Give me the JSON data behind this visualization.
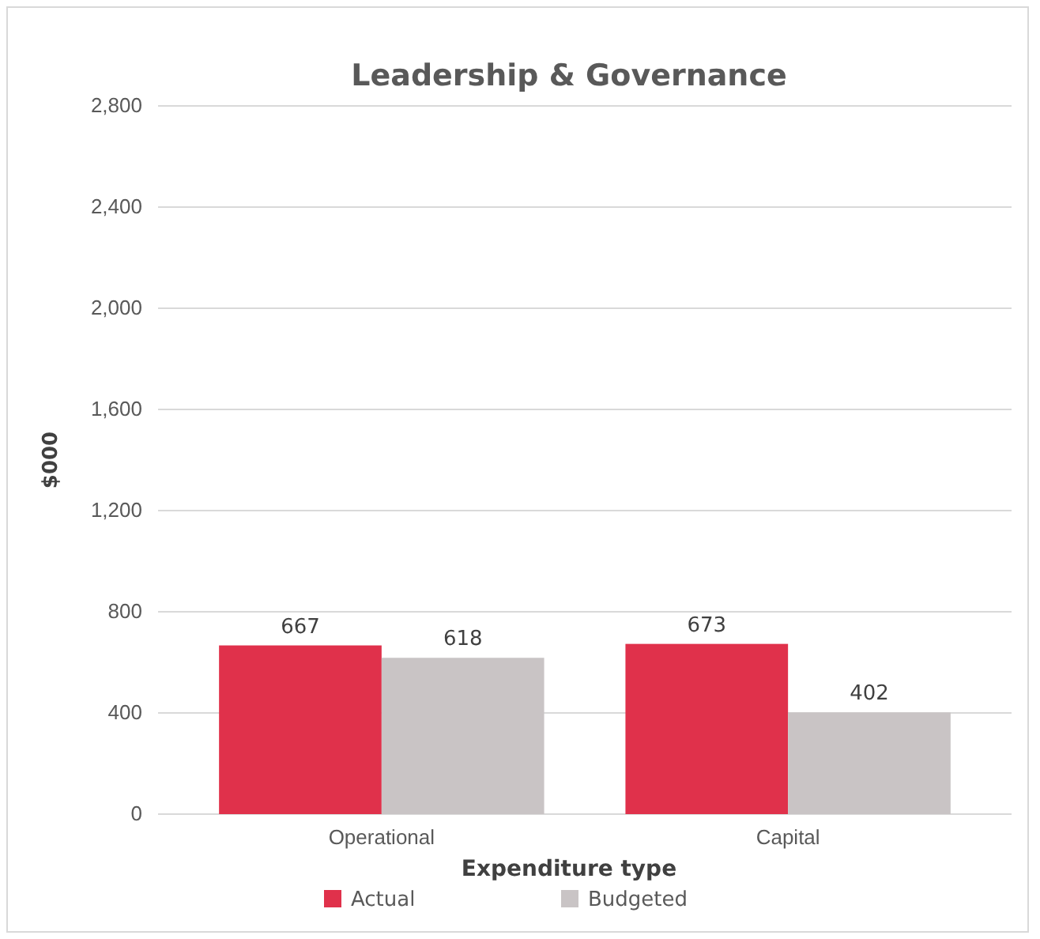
{
  "chart_data": {
    "type": "bar",
    "title": "Leadership & Governance",
    "xlabel": "Expenditure type",
    "ylabel": "$000",
    "categories": [
      "Operational",
      "Capital"
    ],
    "series": [
      {
        "name": "Actual",
        "color": "#e0314b",
        "values": [
          667,
          673
        ]
      },
      {
        "name": "Budgeted",
        "color": "#c9c4c5",
        "values": [
          618,
          402
        ]
      }
    ],
    "ylim": [
      0,
      2800
    ],
    "yticks": [
      {
        "value": 0,
        "label": "0"
      },
      {
        "value": 400,
        "label": "400"
      },
      {
        "value": 800,
        "label": "800"
      },
      {
        "value": 1200,
        "label": "1,200"
      },
      {
        "value": 1600,
        "label": "1,600"
      },
      {
        "value": 2000,
        "label": "2,000"
      },
      {
        "value": 2400,
        "label": "2,400"
      },
      {
        "value": 2800,
        "label": "2,800"
      }
    ],
    "grid": "y",
    "legend": "bottom",
    "data_labels": true
  }
}
